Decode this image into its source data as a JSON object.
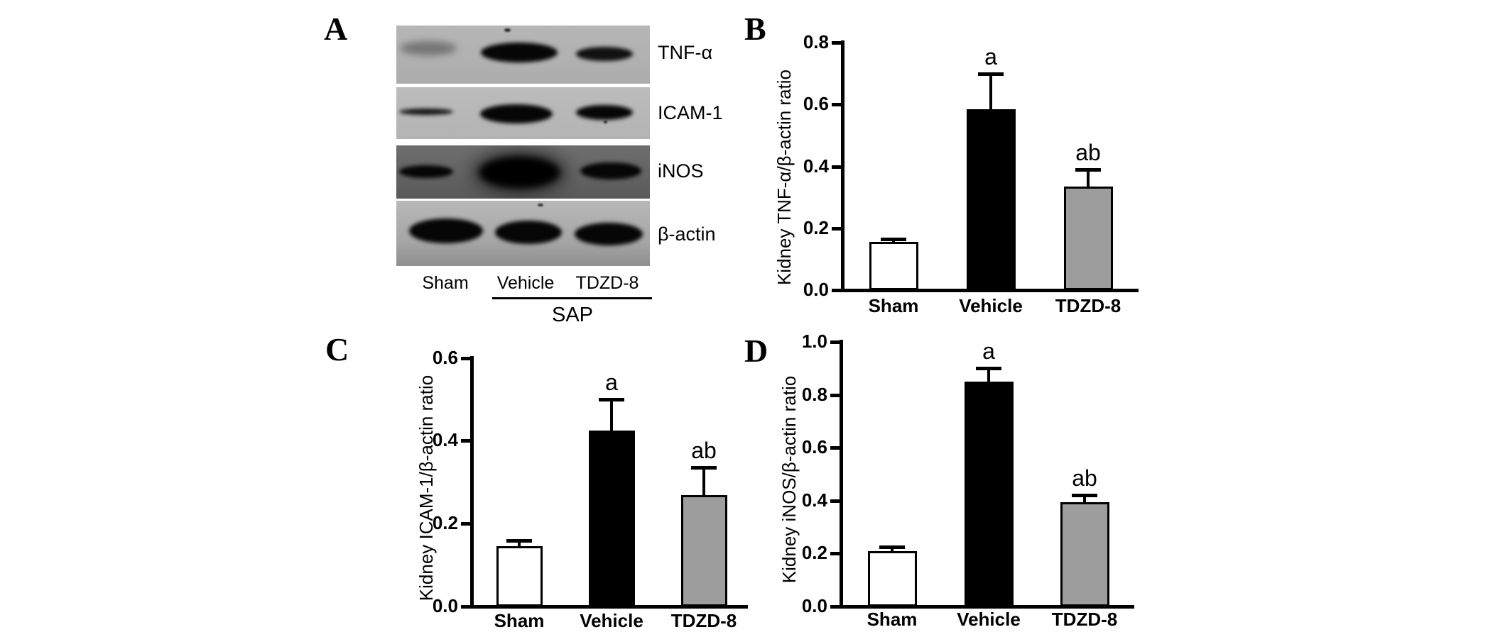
{
  "panel_letters": {
    "a": "A",
    "b": "B",
    "c": "C",
    "d": "D"
  },
  "blot": {
    "row_labels": [
      "TNF-α",
      "ICAM-1",
      "iNOS",
      "β-actin"
    ],
    "lane_labels": [
      "Sham",
      "Vehicle",
      "TDZD-8"
    ],
    "group_label": "SAP",
    "band_intensities": [
      [
        "faint",
        "strong",
        "medium"
      ],
      [
        "medium",
        "strong",
        "strong"
      ],
      [
        "strong",
        "very-strong",
        "strong"
      ],
      [
        "strong",
        "strong",
        "strong"
      ]
    ]
  },
  "chart_data": [
    {
      "panel": "B",
      "type": "bar",
      "title": "",
      "ylabel": "Kidney TNF-α/β-actin ratio",
      "categories": [
        "Sham",
        "Vehicle",
        "TDZD-8"
      ],
      "values": [
        0.155,
        0.585,
        0.335
      ],
      "error_top": [
        0.165,
        0.7,
        0.39
      ],
      "sig_labels": [
        "",
        "a",
        "ab"
      ],
      "bar_colors": [
        "#ffffff",
        "#000000",
        "#9d9d9d"
      ],
      "ylim": [
        0,
        0.8
      ],
      "ytick_values": [
        0.0,
        0.2,
        0.4,
        0.6,
        0.8
      ],
      "ytick_labels": [
        "0.0",
        "0.2",
        "0.4",
        "0.6",
        "0.8"
      ],
      "grid": false,
      "legend": "none"
    },
    {
      "panel": "C",
      "type": "bar",
      "title": "",
      "ylabel": "Kidney ICAM-1/β-actin ratio",
      "categories": [
        "Sham",
        "Vehicle",
        "TDZD-8"
      ],
      "values": [
        0.145,
        0.425,
        0.268
      ],
      "error_top": [
        0.16,
        0.5,
        0.335
      ],
      "sig_labels": [
        "",
        "a",
        "ab"
      ],
      "bar_colors": [
        "#ffffff",
        "#000000",
        "#9d9d9d"
      ],
      "ylim": [
        0,
        0.6
      ],
      "ytick_values": [
        0.0,
        0.2,
        0.4,
        0.6
      ],
      "ytick_labels": [
        "0.0",
        "0.2",
        "0.4",
        "0.6"
      ],
      "grid": false,
      "legend": "none"
    },
    {
      "panel": "D",
      "type": "bar",
      "title": "",
      "ylabel": "Kidney iNOS/β-actin ratio",
      "categories": [
        "Sham",
        "Vehicle",
        "TDZD-8"
      ],
      "values": [
        0.21,
        0.85,
        0.395
      ],
      "error_top": [
        0.225,
        0.9,
        0.42
      ],
      "sig_labels": [
        "",
        "a",
        "ab"
      ],
      "bar_colors": [
        "#ffffff",
        "#000000",
        "#9d9d9d"
      ],
      "ylim": [
        0,
        1.0
      ],
      "ytick_values": [
        0.0,
        0.2,
        0.4,
        0.6,
        0.8,
        1.0
      ],
      "ytick_labels": [
        "0.0",
        "0.2",
        "0.4",
        "0.6",
        "0.8",
        "1.0"
      ],
      "grid": false,
      "legend": "none"
    }
  ]
}
